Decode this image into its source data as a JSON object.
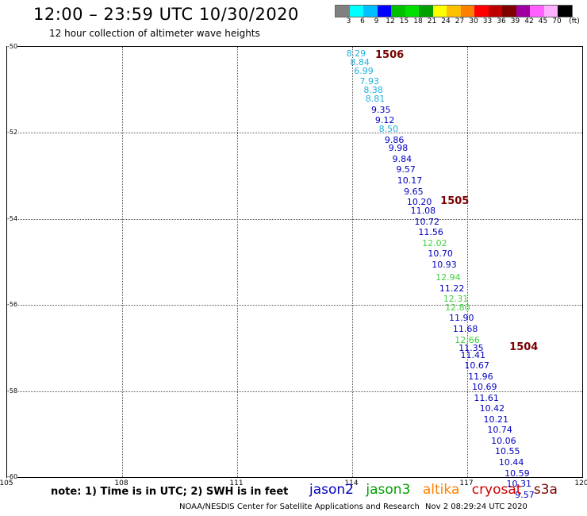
{
  "header": {
    "title": "12:00 – 23:59 UTC 10/30/2020",
    "subtitle": "12 hour collection of altimeter wave heights"
  },
  "legend": {
    "unit": "(ft)",
    "colors": [
      "#808080",
      "#00ffff",
      "#00c0ff",
      "#0000ff",
      "#00c000",
      "#00e000",
      "#00a000",
      "#ffff00",
      "#ffc000",
      "#ff8000",
      "#ff0000",
      "#c00000",
      "#800000",
      "#a000a0",
      "#ff60ff",
      "#ffb0ff",
      "#000000"
    ],
    "labels": [
      "3",
      "6",
      "9",
      "12",
      "15",
      "18",
      "21",
      "24",
      "27",
      "30",
      "33",
      "36",
      "39",
      "42",
      "45",
      "70"
    ]
  },
  "axes": {
    "x_ticks": [
      "105",
      "108",
      "111",
      "114",
      "117",
      "120"
    ],
    "y_ticks": [
      "-50",
      "-52",
      "-54",
      "-56",
      "-58",
      "-60"
    ]
  },
  "map_data": {
    "lon_range": [
      105,
      120
    ],
    "lat_range": [
      -60,
      -50
    ],
    "track_labels": [
      {
        "label": "1506",
        "lon": 114.6,
        "lat": -50.2
      },
      {
        "label": "1505",
        "lon": 116.3,
        "lat": -53.6
      },
      {
        "label": "1504",
        "lon": 118.1,
        "lat": -57.0
      }
    ],
    "points": [
      {
        "v": "8.29",
        "c": "#20b0e0",
        "lon": 114.1,
        "lat": -50.15
      },
      {
        "v": "8.84",
        "c": "#20b0e0",
        "lon": 114.2,
        "lat": -50.35
      },
      {
        "v": "6.99",
        "c": "#20b0e0",
        "lon": 114.3,
        "lat": -50.55
      },
      {
        "v": "7.93",
        "c": "#20b0e0",
        "lon": 114.45,
        "lat": -50.8
      },
      {
        "v": "8.38",
        "c": "#20b0e0",
        "lon": 114.55,
        "lat": -51.0
      },
      {
        "v": "8.81",
        "c": "#20b0e0",
        "lon": 114.6,
        "lat": -51.2
      },
      {
        "v": "9.35",
        "c": "#0000c0",
        "lon": 114.75,
        "lat": -51.45
      },
      {
        "v": "9.12",
        "c": "#0000c0",
        "lon": 114.85,
        "lat": -51.7
      },
      {
        "v": "8.50",
        "c": "#20b0e0",
        "lon": 114.95,
        "lat": -51.9
      },
      {
        "v": "9.86",
        "c": "#0000c0",
        "lon": 115.1,
        "lat": -52.15
      },
      {
        "v": "9.98",
        "c": "#0000c0",
        "lon": 115.2,
        "lat": -52.35
      },
      {
        "v": "9.84",
        "c": "#0000c0",
        "lon": 115.3,
        "lat": -52.6
      },
      {
        "v": "9.57",
        "c": "#0000c0",
        "lon": 115.4,
        "lat": -52.85
      },
      {
        "v": "10.17",
        "c": "#0000c0",
        "lon": 115.5,
        "lat": -53.1
      },
      {
        "v": "9.65",
        "c": "#0000c0",
        "lon": 115.6,
        "lat": -53.35
      },
      {
        "v": "10.20",
        "c": "#0000c0",
        "lon": 115.75,
        "lat": -53.6
      },
      {
        "v": "11.08",
        "c": "#0000c0",
        "lon": 115.85,
        "lat": -53.8
      },
      {
        "v": "10.72",
        "c": "#0000c0",
        "lon": 115.95,
        "lat": -54.05
      },
      {
        "v": "11.56",
        "c": "#0000c0",
        "lon": 116.05,
        "lat": -54.3
      },
      {
        "v": "12.02",
        "c": "#40d040",
        "lon": 116.15,
        "lat": -54.55
      },
      {
        "v": "10.70",
        "c": "#0000c0",
        "lon": 116.3,
        "lat": -54.8
      },
      {
        "v": "10.93",
        "c": "#0000c0",
        "lon": 116.4,
        "lat": -55.05
      },
      {
        "v": "12.94",
        "c": "#40d040",
        "lon": 116.5,
        "lat": -55.35
      },
      {
        "v": "11.22",
        "c": "#0000c0",
        "lon": 116.6,
        "lat": -55.6
      },
      {
        "v": "12.31",
        "c": "#40d040",
        "lon": 116.7,
        "lat": -55.85
      },
      {
        "v": "12.80",
        "c": "#40d040",
        "lon": 116.75,
        "lat": -56.05
      },
      {
        "v": "11.90",
        "c": "#0000c0",
        "lon": 116.85,
        "lat": -56.3
      },
      {
        "v": "11.68",
        "c": "#0000c0",
        "lon": 116.95,
        "lat": -56.55
      },
      {
        "v": "12.66",
        "c": "#40d040",
        "lon": 117.0,
        "lat": -56.8
      },
      {
        "v": "11.35",
        "c": "#0000c0",
        "lon": 117.1,
        "lat": -57.0
      },
      {
        "v": "11.41",
        "c": "#0000c0",
        "lon": 117.15,
        "lat": -57.15
      },
      {
        "v": "10.67",
        "c": "#0000c0",
        "lon": 117.25,
        "lat": -57.4
      },
      {
        "v": "11.96",
        "c": "#0000c0",
        "lon": 117.35,
        "lat": -57.65
      },
      {
        "v": "10.69",
        "c": "#0000c0",
        "lon": 117.45,
        "lat": -57.9
      },
      {
        "v": "11.61",
        "c": "#0000c0",
        "lon": 117.5,
        "lat": -58.15
      },
      {
        "v": "10.42",
        "c": "#0000c0",
        "lon": 117.65,
        "lat": -58.4
      },
      {
        "v": "10.21",
        "c": "#0000c0",
        "lon": 117.75,
        "lat": -58.65
      },
      {
        "v": "10.74",
        "c": "#0000c0",
        "lon": 117.85,
        "lat": -58.9
      },
      {
        "v": "10.06",
        "c": "#0000c0",
        "lon": 117.95,
        "lat": -59.15
      },
      {
        "v": "10.55",
        "c": "#0000c0",
        "lon": 118.05,
        "lat": -59.4
      },
      {
        "v": "10.44",
        "c": "#0000c0",
        "lon": 118.15,
        "lat": -59.65
      },
      {
        "v": "10.59",
        "c": "#0000c0",
        "lon": 118.3,
        "lat": -59.9
      },
      {
        "v": "10.31",
        "c": "#0000c0",
        "lon": 118.35,
        "lat": -60.15
      },
      {
        "v": "9.57",
        "c": "#0000c0",
        "lon": 118.5,
        "lat": -60.4
      }
    ]
  },
  "note": "note: 1) Time is in UTC; 2) SWH is in feet",
  "satellites": [
    {
      "name": "jason2",
      "color": "#0000c0"
    },
    {
      "name": "jason3",
      "color": "#00a000"
    },
    {
      "name": "altika",
      "color": "#ff8000"
    },
    {
      "name": "cryosat",
      "color": "#d00000"
    },
    {
      "name": "s3a",
      "color": "#800000"
    }
  ],
  "footer": {
    "credit": "NOAA/NESDIS Center for Satellite Applications and Research",
    "timestamp": "Nov  2 08:29:24 UTC 2020"
  }
}
